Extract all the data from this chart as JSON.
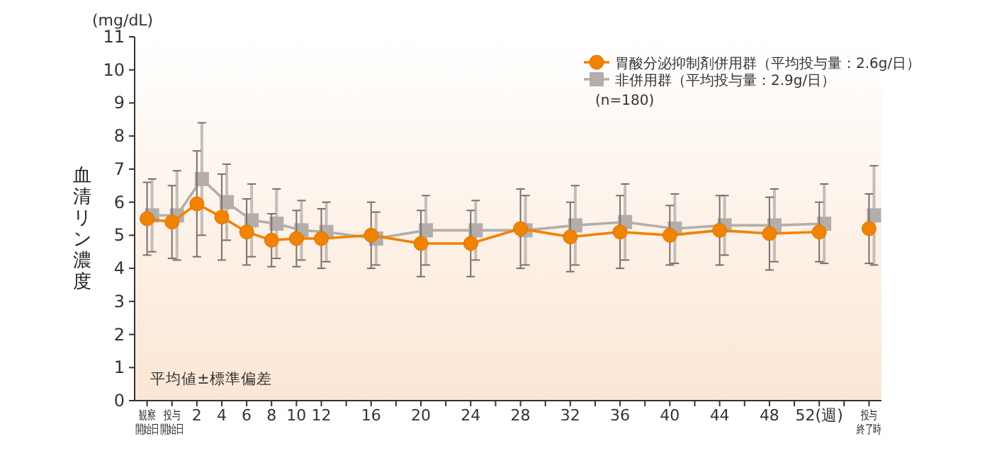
{
  "chart_data": {
    "type": "line",
    "ylabel": "血清リン濃度",
    "ylim": [
      0,
      11
    ],
    "yticks": [
      0,
      1,
      2,
      3,
      4,
      5,
      6,
      7,
      8,
      9,
      10,
      11
    ],
    "xlim": [
      -3,
      57
    ],
    "xticks": [
      {
        "value": -2,
        "label": "観察開始日"
      },
      {
        "value": 0,
        "label": "投与開始日"
      },
      2,
      4,
      6,
      8,
      10,
      12,
      {
        "value": 14,
        "label": null
      },
      16,
      {
        "value": 18,
        "label": null
      },
      20,
      {
        "value": 22,
        "label": null
      },
      24,
      {
        "value": 26,
        "label": null
      },
      28,
      {
        "value": 30,
        "label": null
      },
      32,
      {
        "value": 34,
        "label": null
      },
      36,
      {
        "value": 38,
        "label": null
      },
      40,
      {
        "value": 42,
        "label": null
      },
      44,
      {
        "value": 46,
        "label": null
      },
      48,
      {
        "value": 50,
        "label": null
      },
      {
        "value": 52,
        "label": "52(週)"
      },
      {
        "value": 54,
        "label": null
      },
      {
        "value": 56,
        "label": "投与終了時"
      }
    ],
    "grid": false,
    "legend": "top right",
    "line_style": "solid",
    "x": [
      -2,
      0,
      2,
      4,
      6,
      8,
      10,
      12,
      16,
      20,
      24,
      28,
      32,
      36,
      40,
      44,
      48,
      52,
      54,
      56
    ],
    "series": [
      {
        "name": "胃酸分泌抑制剤併用群（平均投与量：2.6g/日）",
        "color": "#f08300",
        "marker": "circle",
        "values": [
          5.5,
          5.4,
          5.95,
          5.55,
          5.1,
          4.85,
          4.9,
          4.9,
          5.0,
          4.75,
          4.75,
          5.2,
          4.95,
          5.1,
          5.0,
          5.15,
          5.05,
          5.1,
          null,
          5.2
        ],
        "errors": [
          1.1,
          1.1,
          1.6,
          1.3,
          1.0,
          0.8,
          0.85,
          0.9,
          1.0,
          1.0,
          1.0,
          1.2,
          1.05,
          1.1,
          0.9,
          1.05,
          1.1,
          0.9,
          null,
          1.05
        ]
      },
      {
        "name": "非併用群（平均投与量：2.9g/日）",
        "color": "#b4aeaa",
        "marker": "square",
        "x": [
          -1.6,
          0.4,
          2.4,
          4.4,
          6.4,
          8.4,
          10.4,
          12.4,
          16.4,
          20.4,
          24.4,
          28.4,
          32.4,
          36.4,
          40.4,
          44.4,
          48.4,
          52.4,
          54.4,
          56.4
        ],
        "values": [
          5.6,
          5.6,
          6.7,
          6.0,
          5.45,
          5.35,
          5.15,
          5.1,
          4.9,
          5.15,
          5.15,
          5.15,
          5.3,
          5.4,
          5.2,
          5.3,
          5.3,
          5.35,
          null,
          5.6
        ],
        "errors": [
          1.1,
          1.35,
          1.7,
          1.15,
          1.1,
          1.05,
          0.9,
          0.9,
          0.8,
          1.05,
          0.9,
          1.05,
          1.2,
          1.15,
          1.05,
          0.9,
          1.1,
          1.2,
          null,
          1.5
        ]
      }
    ],
    "annotations": [
      "(mg/dL)",
      "(n=180)",
      "平均値±標準偏差"
    ]
  }
}
